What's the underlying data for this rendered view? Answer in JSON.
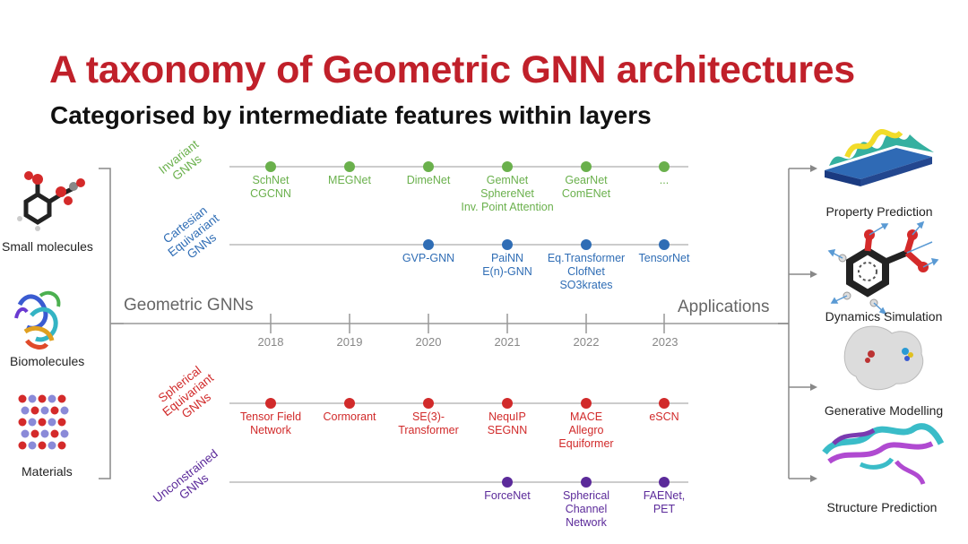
{
  "title": "A taxonomy of Geometric GNN architectures",
  "subtitle": "Categorised by intermediate features within layers",
  "inputs": [
    "Small molecules",
    "Biomolecules",
    "Materials"
  ],
  "center_left_label": "Geometric GNNs",
  "center_right_label": "Applications",
  "years": [
    "2018",
    "2019",
    "2020",
    "2021",
    "2022",
    "2023"
  ],
  "rows": [
    {
      "label_lines": [
        "Invariant",
        "GNNs"
      ],
      "color": "#6ab04c",
      "nodes": [
        {
          "col": 0,
          "lines": [
            "SchNet",
            "CGCNN"
          ]
        },
        {
          "col": 1,
          "lines": [
            "MEGNet"
          ]
        },
        {
          "col": 2,
          "lines": [
            "DimeNet"
          ]
        },
        {
          "col": 3,
          "lines": [
            "GemNet",
            "SphereNet",
            "Inv. Point Attention"
          ]
        },
        {
          "col": 4,
          "lines": [
            "GearNet",
            "ComENet"
          ]
        },
        {
          "col": 5,
          "lines": [
            "..."
          ]
        }
      ]
    },
    {
      "label_lines": [
        "Cartesian",
        "Equivariant",
        "GNNs"
      ],
      "color": "#2f6db5",
      "nodes": [
        {
          "col": 2,
          "lines": [
            "GVP-GNN"
          ]
        },
        {
          "col": 3,
          "lines": [
            "PaiNN",
            "E(n)-GNN"
          ]
        },
        {
          "col": 4,
          "lines": [
            "Eq.Transformer",
            "ClofNet",
            "SO3krates"
          ]
        },
        {
          "col": 5,
          "lines": [
            "TensorNet"
          ]
        }
      ]
    },
    {
      "label_lines": [
        "Spherical",
        "Equivariant",
        "GNNs"
      ],
      "color": "#d12a2a",
      "nodes": [
        {
          "col": 0,
          "lines": [
            "Tensor Field",
            "Network"
          ]
        },
        {
          "col": 1,
          "lines": [
            "Cormorant"
          ]
        },
        {
          "col": 2,
          "lines": [
            "SE(3)-",
            "Transformer"
          ]
        },
        {
          "col": 3,
          "lines": [
            "NequIP",
            "SEGNN"
          ]
        },
        {
          "col": 4,
          "lines": [
            "MACE",
            "Allegro",
            "Equiformer"
          ]
        },
        {
          "col": 5,
          "lines": [
            "eSCN"
          ]
        }
      ]
    },
    {
      "label_lines": [
        "Unconstrained",
        "GNNs"
      ],
      "color": "#5b2a9a",
      "nodes": [
        {
          "col": 3,
          "lines": [
            "ForceNet"
          ]
        },
        {
          "col": 4,
          "lines": [
            "Spherical",
            "Channel",
            "Network"
          ]
        },
        {
          "col": 5,
          "lines": [
            "FAENet,",
            "PET"
          ]
        }
      ]
    }
  ],
  "applications": [
    "Property Prediction",
    "Dynamics Simulation",
    "Generative Modelling",
    "Structure Prediction"
  ],
  "colors": {
    "title": "#c0202a",
    "axis": "#999999",
    "bracket": "#888888"
  }
}
